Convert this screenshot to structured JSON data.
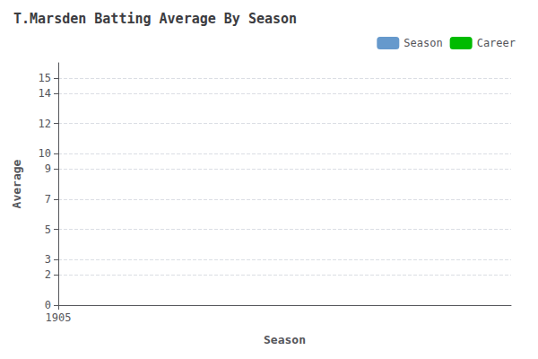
{
  "chart_data": {
    "type": "bar",
    "title": "T.Marsden Batting Average By Season",
    "xlabel": "Season",
    "ylabel": "Average",
    "x": [],
    "series": [
      {
        "name": "Season",
        "color": "#6699CC",
        "values": []
      },
      {
        "name": "Career",
        "color": "#00BB00",
        "values": []
      }
    ],
    "xlim": [
      1905,
      1906
    ],
    "xticks": [
      1905
    ],
    "ylim": [
      0,
      16
    ],
    "yticks": [
      0,
      2,
      3,
      5,
      7,
      9,
      10,
      12,
      14,
      15
    ],
    "grid": true,
    "legend": "upper right"
  }
}
